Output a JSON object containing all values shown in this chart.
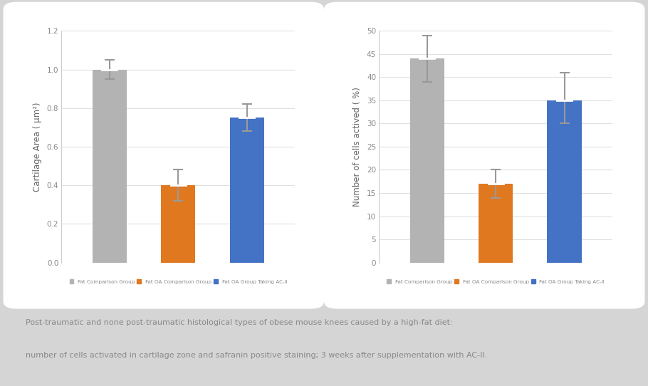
{
  "chart1": {
    "ylabel": "Cartilage Area ( μm²)",
    "values": [
      1.0,
      0.4,
      0.75
    ],
    "errors_up": [
      0.05,
      0.08,
      0.07
    ],
    "errors_dn": [
      0.05,
      0.08,
      0.07
    ],
    "colors": [
      "#b3b3b3",
      "#e07820",
      "#4472c4"
    ],
    "ylim": [
      0,
      1.2
    ],
    "yticks": [
      0,
      0.2,
      0.4,
      0.6,
      0.8,
      1.0,
      1.2
    ],
    "legend_labels": [
      "Fat Comparison Group",
      "Fat OA Comparison Group",
      "Fat OA Group Taking AC-Ⅱ"
    ]
  },
  "chart2": {
    "ylabel": "Number of cells actived ( %)",
    "values": [
      44,
      17,
      35
    ],
    "errors_up": [
      5,
      3,
      6
    ],
    "errors_dn": [
      5,
      3,
      5
    ],
    "colors": [
      "#b3b3b3",
      "#e07820",
      "#4472c4"
    ],
    "ylim": [
      0,
      50
    ],
    "yticks": [
      0,
      5,
      10,
      15,
      20,
      25,
      30,
      35,
      40,
      45,
      50
    ],
    "legend_labels": [
      "Fat Comparison Group",
      "Fat OA Comparison Group",
      "Fat OA Group Taking AC-Ⅱ"
    ]
  },
  "caption_line1": "Post-traumatic and none post-traumatic histological types of obese mouse knees caused by a high-fat diet:",
  "caption_line2": "number of cells activated in cartilage zone and safranin positive staining; 3 weeks after supplementation with AC-II.",
  "background_color": "#d5d5d5",
  "panel_color": "#ffffff",
  "caption_color": "#888888",
  "bar_width": 0.5,
  "grid_color": "#e0e0e0",
  "spine_color": "#cccccc",
  "tick_color": "#888888",
  "ylabel_color": "#666666"
}
